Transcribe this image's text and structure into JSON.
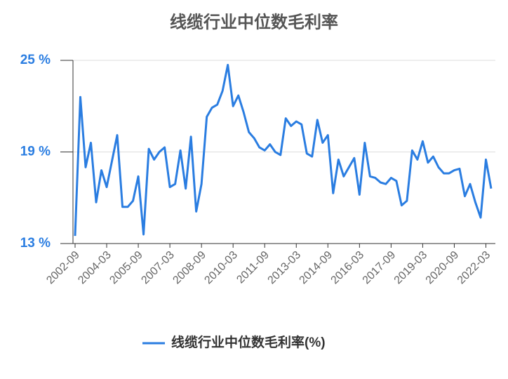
{
  "chart_data": {
    "type": "line",
    "title": "线缆行业中位数毛利率",
    "categories": [
      "2002-09",
      null,
      null,
      null,
      null,
      null,
      "2004-03",
      null,
      null,
      null,
      null,
      null,
      "2005-09",
      null,
      null,
      null,
      null,
      null,
      "2007-03",
      null,
      null,
      null,
      null,
      null,
      "2008-09",
      null,
      null,
      null,
      null,
      null,
      "2010-03",
      null,
      null,
      null,
      null,
      null,
      "2011-09",
      null,
      null,
      null,
      null,
      null,
      "2013-03",
      null,
      null,
      null,
      null,
      null,
      "2014-09",
      null,
      null,
      null,
      null,
      null,
      "2016-03",
      null,
      null,
      null,
      null,
      null,
      "2017-09",
      null,
      null,
      null,
      null,
      null,
      "2019-03",
      null,
      null,
      null,
      null,
      null,
      "2020-09",
      null,
      null,
      null,
      null,
      null,
      "2022-03",
      null
    ],
    "series": [
      {
        "name": "线缆行业中位数毛利率(%)",
        "color": "#2a7de1",
        "values": [
          13.5,
          22.6,
          18.0,
          19.6,
          15.7,
          17.8,
          16.7,
          18.4,
          20.1,
          15.4,
          15.4,
          15.8,
          17.4,
          13.6,
          19.2,
          18.5,
          19.0,
          19.3,
          16.7,
          16.9,
          19.1,
          16.6,
          20.0,
          15.1,
          16.9,
          21.3,
          21.9,
          22.1,
          23.0,
          24.7,
          22.0,
          22.7,
          21.6,
          20.3,
          19.9,
          19.3,
          19.1,
          19.5,
          19.0,
          18.8,
          21.2,
          20.7,
          21.0,
          20.8,
          18.9,
          18.7,
          21.1,
          19.6,
          20.1,
          16.3,
          18.5,
          17.4,
          18.0,
          18.6,
          16.2,
          19.6,
          17.4,
          17.3,
          17.0,
          16.9,
          17.3,
          17.1,
          15.5,
          15.8,
          19.1,
          18.5,
          19.7,
          18.3,
          18.7,
          18.0,
          17.6,
          17.6,
          17.8,
          17.9,
          16.1,
          16.9,
          15.7,
          14.7,
          18.5,
          16.6
        ]
      }
    ],
    "ylim": [
      13,
      25
    ],
    "yticks": [
      {
        "value": 13,
        "label": "13 %"
      },
      {
        "value": 19,
        "label": "19 %"
      },
      {
        "value": 25,
        "label": "25 %"
      }
    ],
    "grid": true,
    "legend": "bottom"
  }
}
